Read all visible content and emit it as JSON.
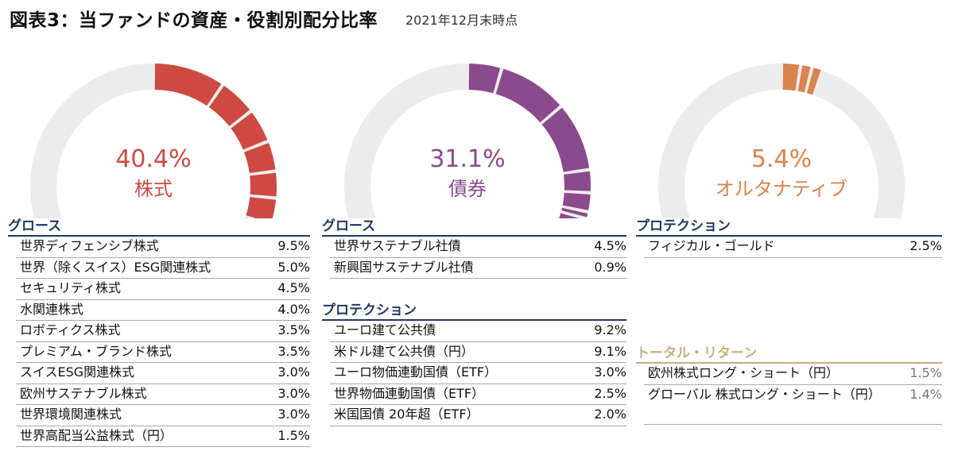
{
  "title": "図表3：当ファンドの資産・役割別配分比率",
  "subtitle": "2021年12月末時点",
  "colors": {
    "equity": "#cc4a42",
    "bond": "#8b4a8b",
    "alt": "#d9834d",
    "track": "#ececec",
    "navy": "#1f3a60",
    "tan": "#c9ae7e"
  },
  "chart_data": [
    {
      "type": "pie",
      "subtype": "half-donut",
      "percent_label": "40.4%",
      "category": "株式",
      "total": 40.4,
      "segments": [
        9.5,
        5.0,
        4.5,
        4.0,
        3.5,
        3.5,
        3.0,
        3.0,
        3.0,
        1.5
      ]
    },
    {
      "type": "pie",
      "subtype": "half-donut",
      "percent_label": "31.1%",
      "category": "債券",
      "total": 31.1,
      "segments": [
        4.5,
        9.2,
        9.1,
        3.0,
        2.5,
        0.9,
        2.0
      ]
    },
    {
      "type": "pie",
      "subtype": "half-donut",
      "percent_label": "5.4%",
      "category": "オルタナティブ",
      "total": 5.4,
      "segments": [
        2.5,
        1.5,
        1.4
      ]
    }
  ],
  "equity": {
    "groups": [
      {
        "title": "グロース",
        "items": [
          {
            "label": "世界ディフェンシブ株式",
            "value": "9.5%"
          },
          {
            "label": "世界（除くスイス）ESG関連株式",
            "value": "5.0%"
          },
          {
            "label": "セキュリティ株式",
            "value": "4.5%"
          },
          {
            "label": "水関連株式",
            "value": "4.0%"
          },
          {
            "label": "ロボティクス株式",
            "value": "3.5%"
          },
          {
            "label": "プレミアム・ブランド株式",
            "value": "3.5%"
          },
          {
            "label": "スイスESG関連株式",
            "value": "3.0%"
          },
          {
            "label": "欧州サステナブル株式",
            "value": "3.0%"
          },
          {
            "label": "世界環境関連株式",
            "value": "3.0%"
          },
          {
            "label": "世界高配当公益株式（円）",
            "value": "1.5%"
          }
        ]
      }
    ]
  },
  "bond": {
    "groups": [
      {
        "title": "グロース",
        "items": [
          {
            "label": "世界サステナブル社債",
            "value": "4.5%"
          },
          {
            "label": "新興国サステナブル社債",
            "value": "0.9%"
          }
        ]
      },
      {
        "title": "プロテクション",
        "items": [
          {
            "label": "ユーロ建て公共債",
            "value": "9.2%"
          },
          {
            "label": "米ドル建て公共債（円）",
            "value": "9.1%"
          },
          {
            "label": "ユーロ物価連動国債（ETF）",
            "value": "3.0%"
          },
          {
            "label": "世界物価連動国債（ETF）",
            "value": "2.5%"
          },
          {
            "label": "米国国債 20年超（ETF）",
            "value": "2.0%"
          }
        ]
      }
    ]
  },
  "alt": {
    "groups": [
      {
        "title": "プロテクション",
        "items": [
          {
            "label": "フィジカル・ゴールド",
            "value": "2.5%"
          }
        ]
      },
      {
        "title": "トータル・リターン",
        "items": [
          {
            "label": "欧州株式ロング・ショート（円）",
            "value": "1.5%"
          },
          {
            "label": "グローバル 株式ロング・ショート（円）",
            "value": "1.4%"
          }
        ]
      }
    ]
  }
}
